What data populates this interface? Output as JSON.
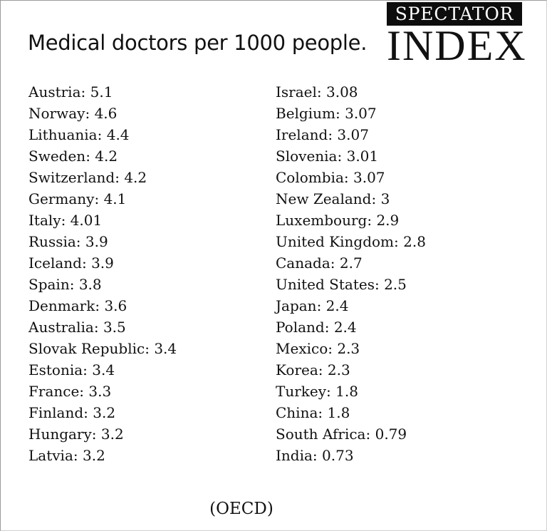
{
  "title": "Medical doctors per 1000 people.",
  "logo": {
    "top": "SPECTATOR",
    "bottom": "INDEX"
  },
  "left_column": [
    {
      "country": "Austria",
      "value": "5.1"
    },
    {
      "country": "Norway",
      "value": "4.6"
    },
    {
      "country": "Lithuania",
      "value": "4.4"
    },
    {
      "country": "Sweden",
      "value": "4.2"
    },
    {
      "country": "Switzerland",
      "value": "4.2"
    },
    {
      "country": "Germany",
      "value": "4.1"
    },
    {
      "country": "Italy",
      "value": "4.01"
    },
    {
      "country": "Russia",
      "value": "3.9"
    },
    {
      "country": "Iceland",
      "value": "3.9"
    },
    {
      "country": "Spain",
      "value": "3.8"
    },
    {
      "country": "Denmark",
      "value": "3.6"
    },
    {
      "country": "Australia",
      "value": "3.5"
    },
    {
      "country": "Slovak Republic",
      "value": "3.4"
    },
    {
      "country": "Estonia",
      "value": "3.4"
    },
    {
      "country": "France",
      "value": "3.3"
    },
    {
      "country": "Finland",
      "value": "3.2"
    },
    {
      "country": "Hungary",
      "value": "3.2"
    },
    {
      "country": "Latvia",
      "value": "3.2"
    }
  ],
  "right_column": [
    {
      "country": "Israel",
      "value": "3.08"
    },
    {
      "country": "Belgium",
      "value": "3.07"
    },
    {
      "country": "Ireland",
      "value": "3.07"
    },
    {
      "country": "Slovenia",
      "value": "3.01"
    },
    {
      "country": "Colombia",
      "value": "3.07"
    },
    {
      "country": "New Zealand",
      "value": "3"
    },
    {
      "country": "Luxembourg",
      "value": "2.9"
    },
    {
      "country": "United Kingdom",
      "value": "2.8"
    },
    {
      "country": "Canada",
      "value": "2.7"
    },
    {
      "country": "United States",
      "value": "2.5"
    },
    {
      "country": "Japan",
      "value": "2.4"
    },
    {
      "country": "Poland",
      "value": "2.4"
    },
    {
      "country": "Mexico",
      "value": "2.3"
    },
    {
      "country": "Korea",
      "value": "2.3"
    },
    {
      "country": "Turkey",
      "value": "1.8"
    },
    {
      "country": "China",
      "value": "1.8"
    },
    {
      "country": "South Africa",
      "value": "0.79"
    },
    {
      "country": "India",
      "value": "0.73"
    }
  ],
  "source": "(OECD)"
}
